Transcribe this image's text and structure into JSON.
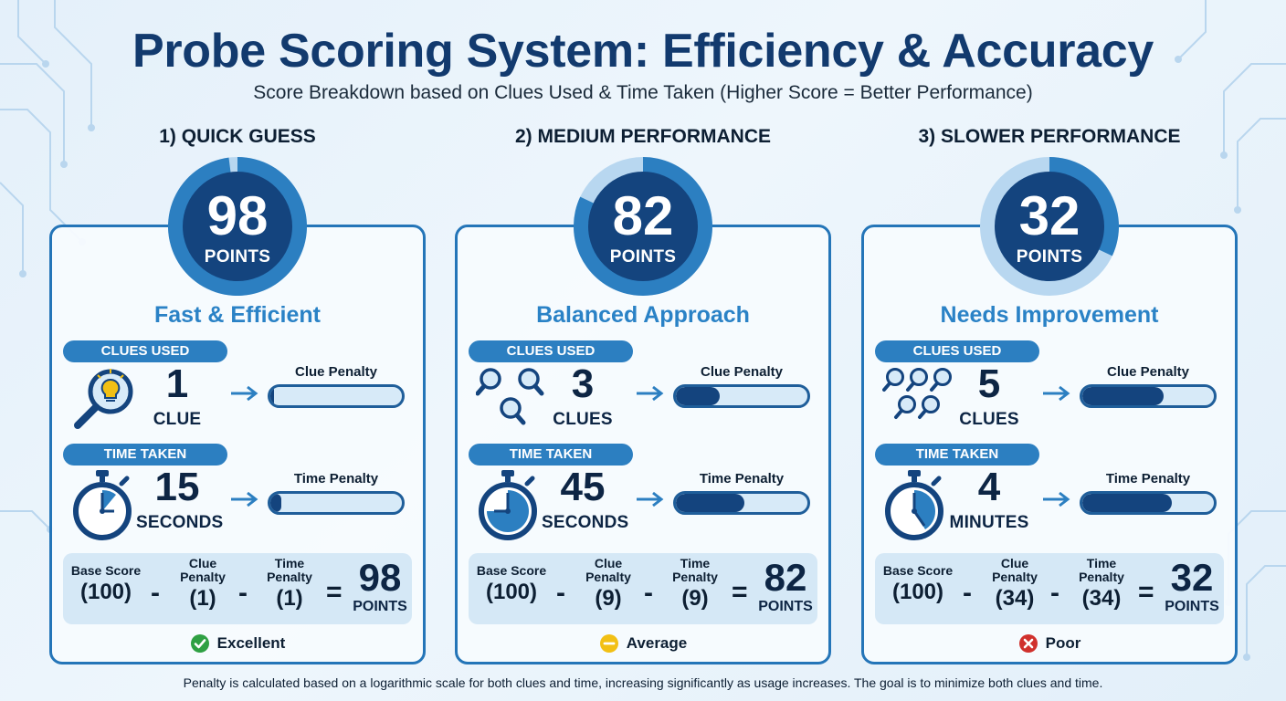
{
  "header": {
    "title": "Probe Scoring System: Efficiency & Accuracy",
    "subtitle": "Score Breakdown based on Clues Used & Time Taken (Higher Score = Better Performance)"
  },
  "colors": {
    "accent": "#2c7fc1",
    "dark_navy": "#14447e",
    "light_blue": "#d7eaf8",
    "excellent": "#2ea043",
    "average": "#f2c014",
    "poor": "#d0312d"
  },
  "scenarios": [
    {
      "heading": "1) QUICK GUESS",
      "score": "98",
      "score_unit": "POINTS",
      "score_fraction": 0.98,
      "title": "Fast & Efficient",
      "clues_label": "CLUES USED",
      "clues_icon": "magnifier-lightbulb-icon",
      "clues_value": "1",
      "clues_unit": "CLUE",
      "clue_penalty_label": "Clue Penalty",
      "clue_penalty_level": 0.03,
      "time_label": "TIME TAKEN",
      "time_icon": "stopwatch-icon",
      "time_value": "15",
      "time_unit": "SECONDS",
      "time_penalty_label": "Time Penalty",
      "time_penalty_level": 0.08,
      "formula": {
        "base_label": "Base Score",
        "base_value": "(100)",
        "minus": "-",
        "clue_label_1": "Clue",
        "clue_label_2": "Penalty",
        "clue_value": "(1)",
        "time_label_1": "Time",
        "time_label_2": "Penalty",
        "time_value": "(1)",
        "equals": "=",
        "result": "98",
        "result_unit": "POINTS"
      },
      "rating_label": "Excellent",
      "rating_icon": "check-circle-icon",
      "rating_color": "#2ea043"
    },
    {
      "heading": "2) MEDIUM PERFORMANCE",
      "score": "82",
      "score_unit": "POINTS",
      "score_fraction": 0.82,
      "title": "Balanced Approach",
      "clues_label": "CLUES USED",
      "clues_icon": "three-magnifiers-icon",
      "clues_value": "3",
      "clues_unit": "CLUES",
      "clue_penalty_label": "Clue Penalty",
      "clue_penalty_level": 0.33,
      "time_label": "TIME TAKEN",
      "time_icon": "stopwatch-icon",
      "time_value": "45",
      "time_unit": "SECONDS",
      "time_penalty_label": "Time Penalty",
      "time_penalty_level": 0.52,
      "formula": {
        "base_label": "Base Score",
        "base_value": "(100)",
        "minus": "-",
        "clue_label_1": "Clue",
        "clue_label_2": "Penalty",
        "clue_value": "(9)",
        "time_label_1": "Time",
        "time_label_2": "Penalty",
        "time_value": "(9)",
        "equals": "=",
        "result": "82",
        "result_unit": "POINTS"
      },
      "rating_label": "Average",
      "rating_icon": "minus-circle-icon",
      "rating_color": "#f2c014"
    },
    {
      "heading": "3) SLOWER PERFORMANCE",
      "score": "32",
      "score_unit": "POINTS",
      "score_fraction": 0.32,
      "title": "Needs Improvement",
      "clues_label": "CLUES USED",
      "clues_icon": "five-magnifiers-icon",
      "clues_value": "5",
      "clues_unit": "CLUES",
      "clue_penalty_label": "Clue Penalty",
      "clue_penalty_level": 0.62,
      "time_label": "TIME TAKEN",
      "time_icon": "stopwatch-icon",
      "time_value": "4",
      "time_unit": "MINUTES",
      "time_penalty_label": "Time Penalty",
      "time_penalty_level": 0.68,
      "formula": {
        "base_label": "Base Score",
        "base_value": "(100)",
        "minus": "-",
        "clue_label_1": "Clue",
        "clue_label_2": "Penalty",
        "clue_value": "(34)",
        "time_label_1": "Time",
        "time_label_2": "Penalty",
        "time_value": "(34)",
        "equals": "=",
        "result": "32",
        "result_unit": "POINTS"
      },
      "rating_label": "Poor",
      "rating_icon": "x-circle-icon",
      "rating_color": "#d0312d"
    }
  ],
  "footer": "Penalty is calculated based on a logarithmic scale for both clues and time, increasing significantly as usage increases. The goal is to minimize both clues and time."
}
